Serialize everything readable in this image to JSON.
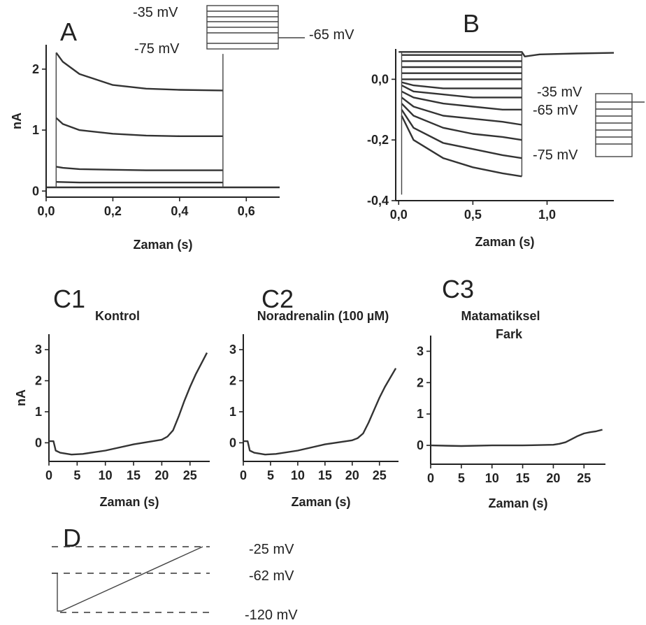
{
  "panels": {
    "A": "A",
    "B": "B",
    "C1": "C1",
    "C2": "C2",
    "C3": "C3",
    "D": "D"
  },
  "A": {
    "step_labels": {
      "top": "-35 mV",
      "bottom": "-75 mV",
      "hold": "-65 mV"
    }
  },
  "B": {
    "step_labels": {
      "top": "-35 mV",
      "hold": "-65 mV",
      "bottom": "-75 mV"
    }
  },
  "C1_title": "Kontrol",
  "C2_title": "Noradrenalin (100 µM)",
  "C3_title_line1": "Matamatiksel",
  "C3_title_line2": "Fark",
  "D": {
    "levels": [
      "-25 mV",
      "-62 mV",
      "-120 mV"
    ]
  },
  "chart_data": [
    {
      "id": "A",
      "type": "line",
      "xlabel": "Zaman (s)",
      "ylabel": "nA",
      "xlim": [
        0.0,
        0.7
      ],
      "ylim": [
        -0.1,
        2.4
      ],
      "xticks": [
        "0,0",
        "0,2",
        "0,4",
        "0,6"
      ],
      "xtick_values": [
        0.0,
        0.2,
        0.4,
        0.6
      ],
      "yticks": [
        "0",
        "1",
        "2"
      ],
      "ytick_values": [
        0,
        1,
        2
      ],
      "series": [
        {
          "x": [
            0.03,
            0.05,
            0.1,
            0.2,
            0.3,
            0.4,
            0.53
          ],
          "y": [
            2.27,
            2.12,
            1.92,
            1.74,
            1.68,
            1.66,
            1.65
          ]
        },
        {
          "x": [
            0.03,
            0.05,
            0.1,
            0.2,
            0.3,
            0.4,
            0.53
          ],
          "y": [
            1.2,
            1.1,
            1.0,
            0.94,
            0.91,
            0.9,
            0.9
          ]
        },
        {
          "x": [
            0.03,
            0.05,
            0.1,
            0.2,
            0.3,
            0.4,
            0.53
          ],
          "y": [
            0.4,
            0.38,
            0.36,
            0.35,
            0.34,
            0.34,
            0.34
          ]
        },
        {
          "x": [
            0.03,
            0.1,
            0.3,
            0.53
          ],
          "y": [
            0.15,
            0.14,
            0.14,
            0.14
          ]
        },
        {
          "x": [
            0.0,
            0.7
          ],
          "y": [
            0.06,
            0.06
          ]
        }
      ]
    },
    {
      "id": "B",
      "type": "line",
      "xlabel": "Zaman (s)",
      "ylabel": "",
      "xlim": [
        -0.02,
        1.45
      ],
      "ylim": [
        -0.4,
        0.1
      ],
      "xticks": [
        "0,0",
        "0,5",
        "1,0"
      ],
      "xtick_values": [
        0.0,
        0.5,
        1.0
      ],
      "yticks": [
        "0,0",
        "-0,2",
        "-0,4"
      ],
      "ytick_values": [
        0.0,
        -0.2,
        -0.4
      ],
      "series": [
        {
          "x": [
            0.02,
            0.1,
            0.3,
            0.5,
            0.7,
            0.83
          ],
          "y": [
            -0.12,
            -0.2,
            -0.26,
            -0.29,
            -0.31,
            -0.32
          ]
        },
        {
          "x": [
            0.02,
            0.1,
            0.3,
            0.5,
            0.7,
            0.83
          ],
          "y": [
            -0.1,
            -0.16,
            -0.21,
            -0.23,
            -0.25,
            -0.26
          ]
        },
        {
          "x": [
            0.02,
            0.1,
            0.3,
            0.5,
            0.7,
            0.83
          ],
          "y": [
            -0.08,
            -0.12,
            -0.16,
            -0.18,
            -0.19,
            -0.2
          ]
        },
        {
          "x": [
            0.02,
            0.1,
            0.3,
            0.5,
            0.7,
            0.83
          ],
          "y": [
            -0.06,
            -0.09,
            -0.12,
            -0.13,
            -0.14,
            -0.15
          ]
        },
        {
          "x": [
            0.02,
            0.1,
            0.3,
            0.5,
            0.7,
            0.83
          ],
          "y": [
            -0.04,
            -0.06,
            -0.08,
            -0.09,
            -0.1,
            -0.1
          ]
        },
        {
          "x": [
            0.02,
            0.1,
            0.3,
            0.5,
            0.7,
            0.83
          ],
          "y": [
            -0.02,
            -0.04,
            -0.05,
            -0.06,
            -0.06,
            -0.06
          ]
        },
        {
          "x": [
            0.02,
            0.1,
            0.3,
            0.5,
            0.7,
            0.83
          ],
          "y": [
            -0.01,
            -0.02,
            -0.03,
            -0.03,
            -0.03,
            -0.03
          ]
        },
        {
          "x": [
            0.02,
            0.3,
            0.83
          ],
          "y": [
            0.0,
            0.0,
            0.0
          ]
        },
        {
          "x": [
            0.02,
            0.3,
            0.83
          ],
          "y": [
            0.02,
            0.02,
            0.02
          ]
        },
        {
          "x": [
            0.02,
            0.3,
            0.83
          ],
          "y": [
            0.04,
            0.04,
            0.04
          ]
        },
        {
          "x": [
            0.02,
            0.3,
            0.83
          ],
          "y": [
            0.06,
            0.06,
            0.06
          ]
        },
        {
          "x": [
            0.02,
            0.3,
            0.83
          ],
          "y": [
            0.08,
            0.08,
            0.08
          ]
        },
        {
          "x": [
            0.0,
            0.02,
            0.83,
            0.85,
            0.95,
            1.2,
            1.45
          ],
          "y": [
            0.09,
            0.09,
            0.09,
            0.075,
            0.082,
            0.085,
            0.087
          ]
        }
      ]
    },
    {
      "id": "C1",
      "type": "line",
      "xlabel": "Zaman (s)",
      "ylabel": "nA",
      "xlim": [
        0,
        28.5
      ],
      "ylim": [
        -0.6,
        3.5
      ],
      "xticks": [
        "0",
        "5",
        "10",
        "15",
        "20",
        "25"
      ],
      "xtick_values": [
        0,
        5,
        10,
        15,
        20,
        25
      ],
      "yticks": [
        "0",
        "1",
        "2",
        "3"
      ],
      "ytick_values": [
        0,
        1,
        2,
        3
      ],
      "series": [
        {
          "x": [
            0,
            0.8,
            1.2,
            2,
            4,
            6,
            10,
            15,
            20,
            21,
            22,
            23,
            24,
            25,
            26,
            27,
            28
          ],
          "y": [
            0.05,
            0.05,
            -0.25,
            -0.32,
            -0.38,
            -0.36,
            -0.25,
            -0.05,
            0.1,
            0.2,
            0.4,
            0.85,
            1.35,
            1.8,
            2.2,
            2.55,
            2.9
          ]
        }
      ]
    },
    {
      "id": "C2",
      "type": "line",
      "xlabel": "Zaman (s)",
      "ylabel": "",
      "xlim": [
        0,
        28.5
      ],
      "ylim": [
        -0.6,
        3.5
      ],
      "xticks": [
        "0",
        "5",
        "10",
        "15",
        "20",
        "25"
      ],
      "xtick_values": [
        0,
        5,
        10,
        15,
        20,
        25
      ],
      "yticks": [
        "0",
        "1",
        "2",
        "3"
      ],
      "ytick_values": [
        0,
        1,
        2,
        3
      ],
      "series": [
        {
          "x": [
            0,
            0.8,
            1.2,
            2,
            4,
            6,
            10,
            15,
            20,
            21,
            22,
            23,
            24,
            25,
            26,
            27,
            28
          ],
          "y": [
            0.05,
            0.05,
            -0.25,
            -0.32,
            -0.38,
            -0.36,
            -0.25,
            -0.05,
            0.08,
            0.15,
            0.3,
            0.65,
            1.05,
            1.45,
            1.8,
            2.1,
            2.4
          ]
        }
      ]
    },
    {
      "id": "C3",
      "type": "line",
      "xlabel": "Zaman (s)",
      "ylabel": "",
      "xlim": [
        0,
        28.5
      ],
      "ylim": [
        -0.6,
        3.5
      ],
      "xticks": [
        "0",
        "5",
        "10",
        "15",
        "20",
        "25"
      ],
      "xtick_values": [
        0,
        5,
        10,
        15,
        20,
        25
      ],
      "yticks": [
        "0",
        "1",
        "2",
        "3"
      ],
      "ytick_values": [
        0,
        1,
        2,
        3
      ],
      "series": [
        {
          "x": [
            0,
            5,
            10,
            15,
            20,
            21,
            22,
            23,
            24,
            25,
            26,
            27,
            28
          ],
          "y": [
            0.0,
            -0.02,
            0.0,
            0.0,
            0.02,
            0.05,
            0.1,
            0.2,
            0.3,
            0.38,
            0.42,
            0.45,
            0.5
          ]
        }
      ]
    }
  ]
}
